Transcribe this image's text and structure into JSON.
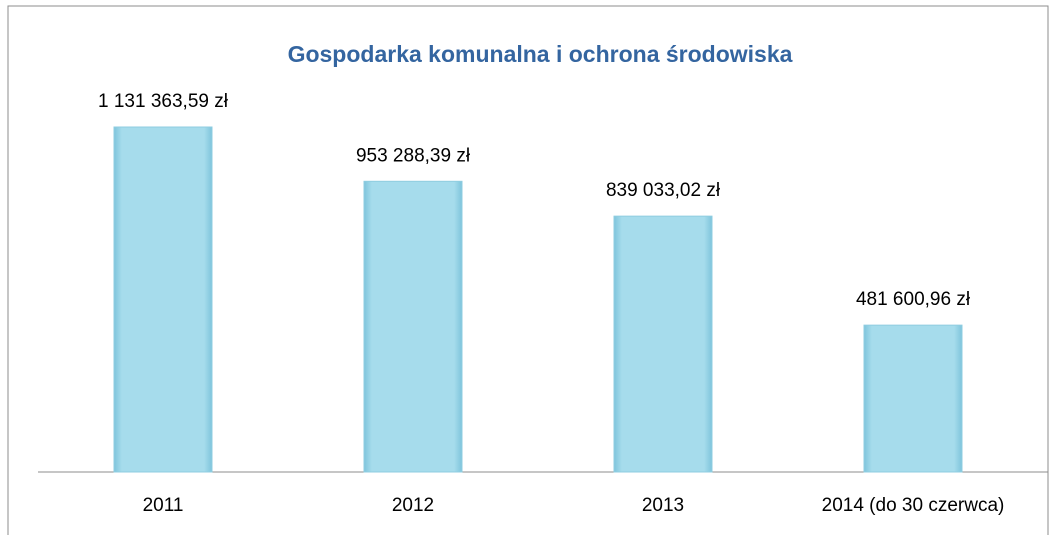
{
  "chart_data": {
    "type": "bar",
    "title": "Gospodarka komunalna i ochrona środowiska",
    "categories": [
      "2011",
      "2012",
      "2013",
      "2014 (do 30 czerwca)"
    ],
    "values": [
      1131363.59,
      953288.39,
      839033.02,
      481600.96
    ],
    "value_labels": [
      "1 131 363,59 zł",
      "953 288,39 zł",
      "839 033,02 zł",
      "481 600,96 zł"
    ],
    "color": "#a6dcec"
  }
}
